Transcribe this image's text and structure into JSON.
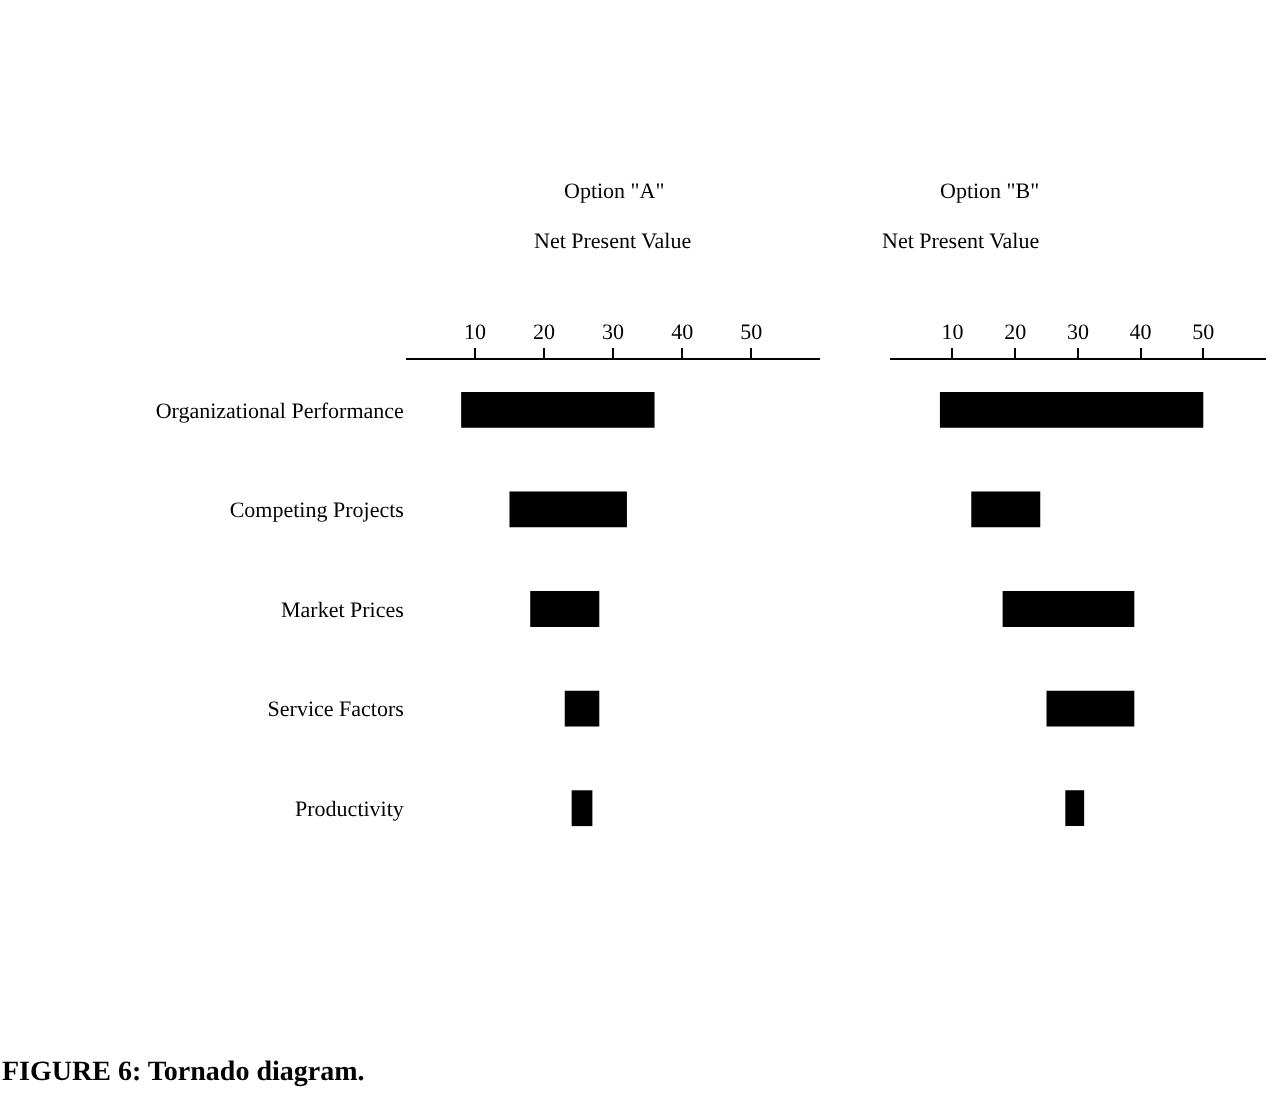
{
  "chart_data": [
    {
      "type": "bar",
      "orientation": "horizontal",
      "title": "Option \"A\"",
      "subtitle": "Net Present Value",
      "categories": [
        "Organizational Performance",
        "Competing Projects",
        "Market Prices",
        "Service Factors",
        "Productivity"
      ],
      "base": [
        8,
        15,
        18,
        23,
        24
      ],
      "values": [
        28,
        17,
        10,
        5,
        3
      ],
      "color": "#000000",
      "xlim": [
        0,
        60
      ],
      "xticks": [
        10,
        20,
        30,
        40,
        50
      ],
      "annotations": [
        "FIGURE 6: Tornado diagram."
      ]
    },
    {
      "type": "bar",
      "orientation": "horizontal",
      "title": "Option \"B\"",
      "subtitle": "Net Present Value",
      "categories": [
        null,
        null,
        null,
        null,
        null
      ],
      "base": [
        8,
        13,
        18,
        25,
        28
      ],
      "values": [
        42,
        11,
        21,
        14,
        3
      ],
      "color": "#000000",
      "xlim": [
        0,
        60
      ],
      "xticks": [
        10,
        20,
        30,
        40,
        50
      ],
      "tick_labels": "x"
    }
  ]
}
